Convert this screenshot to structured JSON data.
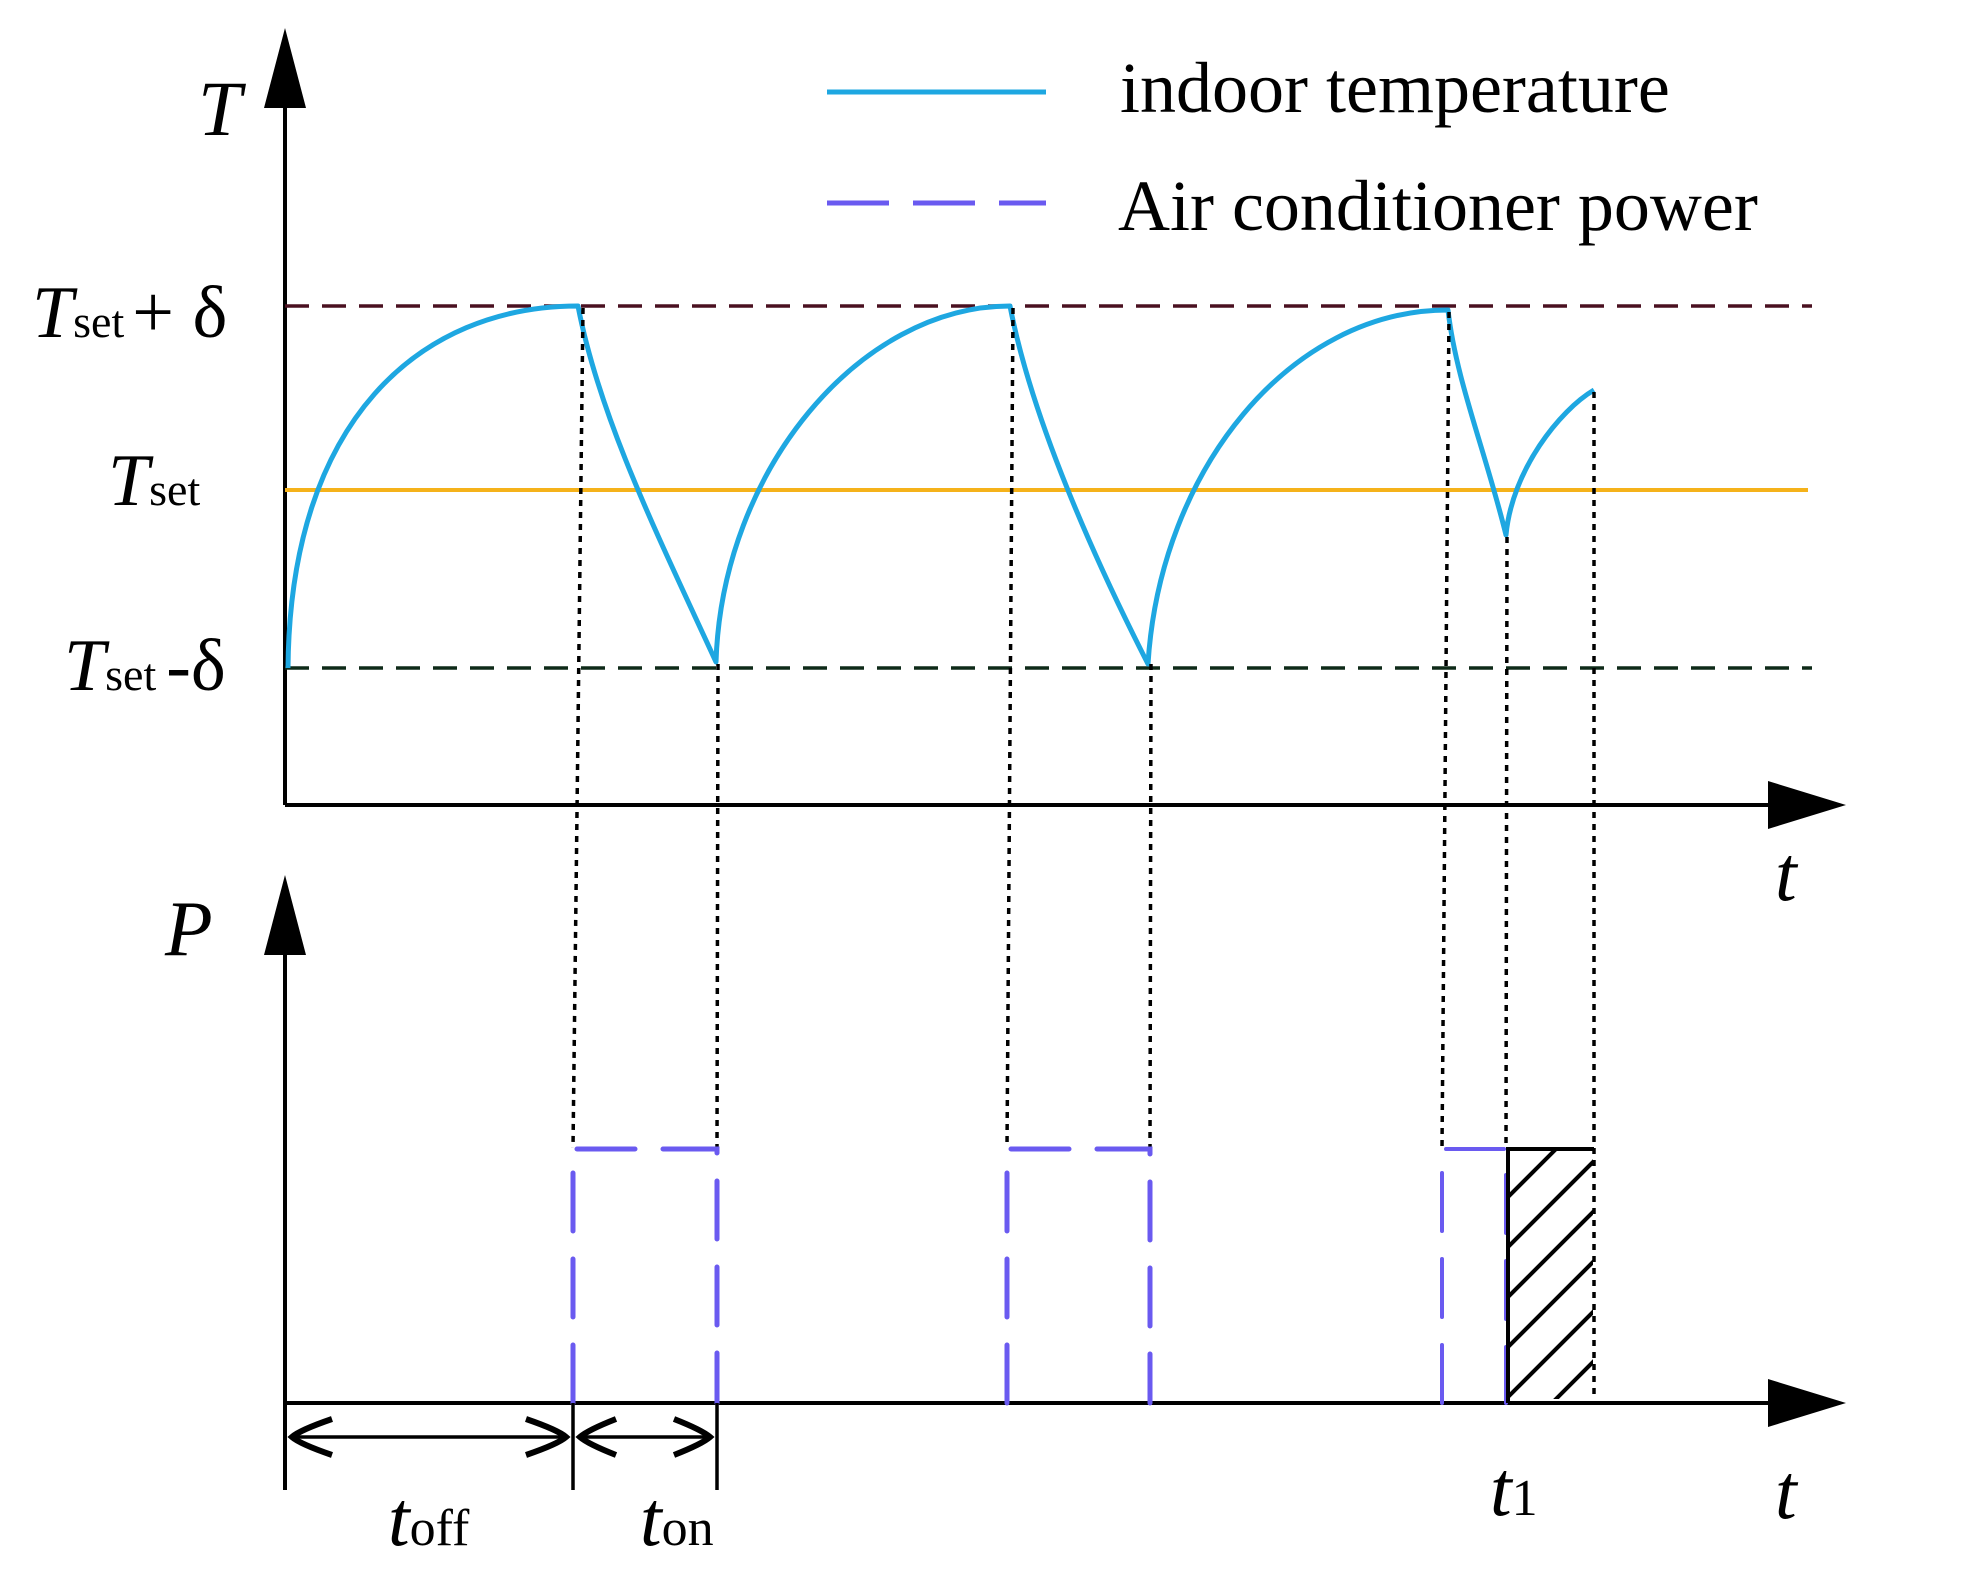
{
  "axes": {
    "top_y_label": "T",
    "top_x_label": "t",
    "bottom_y_label": "P",
    "bottom_x_label": "t"
  },
  "levels": {
    "upper": {
      "main": "T",
      "sub": "set",
      "suffix": "+ δ"
    },
    "set": {
      "main": "T",
      "sub": "set",
      "suffix": ""
    },
    "lower": {
      "main": "T",
      "sub": "set",
      "suffix": "-δ"
    }
  },
  "legend": {
    "temperature": "indoor temperature",
    "power": "Air conditioner power"
  },
  "durations": {
    "off": {
      "main": "t",
      "sub": "off"
    },
    "on": {
      "main": "t",
      "sub": "on"
    },
    "t1": {
      "main": "t",
      "sub": "1"
    }
  },
  "colors": {
    "temperature": "#1ea7e1",
    "power": "#6a5af0",
    "set_line": "#f5b21a",
    "upper_line": "#4a1020",
    "lower_line": "#0e2a18",
    "axes": "#000000"
  }
}
